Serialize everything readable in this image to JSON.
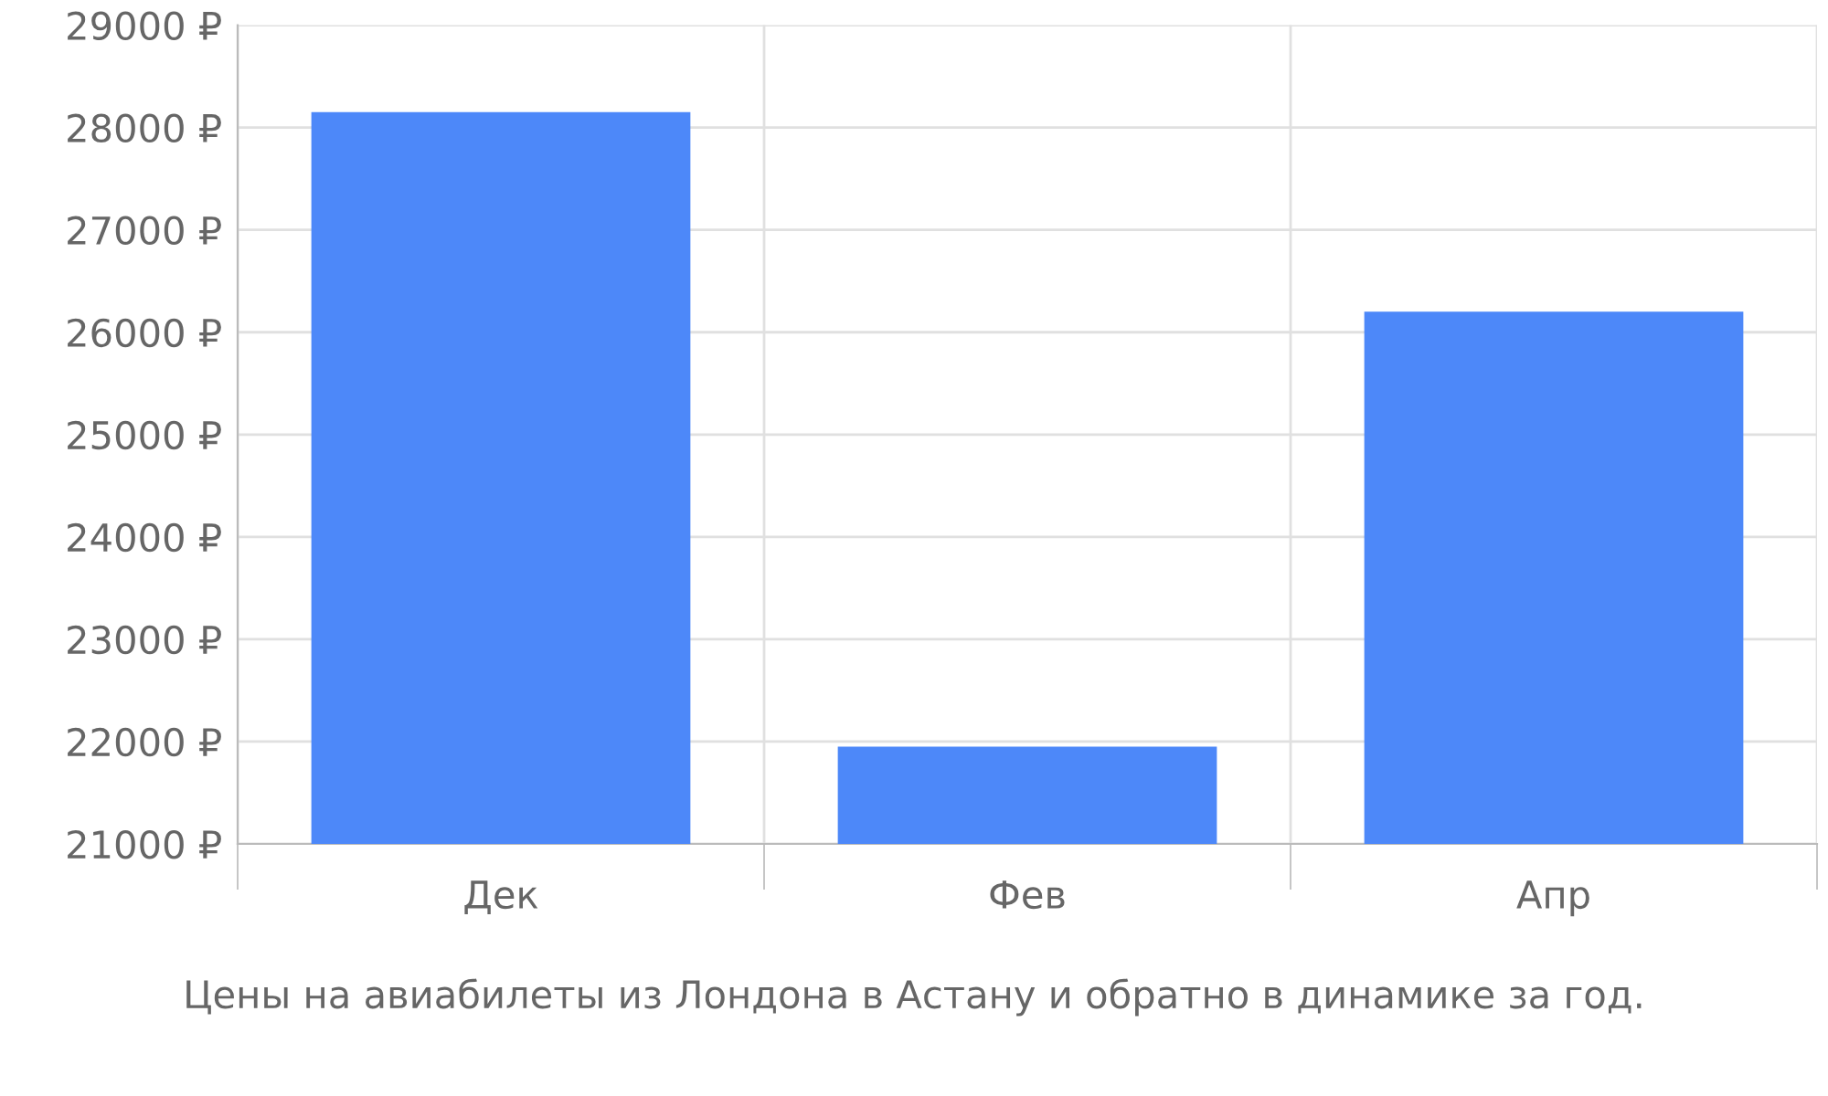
{
  "chart_data": {
    "type": "bar",
    "categories": [
      "Дек",
      "Фев",
      "Апр"
    ],
    "values": [
      28150,
      21950,
      26200
    ],
    "color": "#4d88f9",
    "ylim": [
      21000,
      29000
    ],
    "yticks": [
      {
        "value": 21000,
        "label": "21000 ₽"
      },
      {
        "value": 22000,
        "label": "22000 ₽"
      },
      {
        "value": 23000,
        "label": "23000 ₽"
      },
      {
        "value": 24000,
        "label": "24000 ₽"
      },
      {
        "value": 25000,
        "label": "25000 ₽"
      },
      {
        "value": 26000,
        "label": "26000 ₽"
      },
      {
        "value": 27000,
        "label": "27000 ₽"
      },
      {
        "value": 28000,
        "label": "28000 ₽"
      },
      {
        "value": 29000,
        "label": "29000 ₽"
      }
    ],
    "grid": true,
    "annotations": [
      "Цены на авиабилеты из Лондона в Астану и обратно в динамике за год."
    ]
  }
}
